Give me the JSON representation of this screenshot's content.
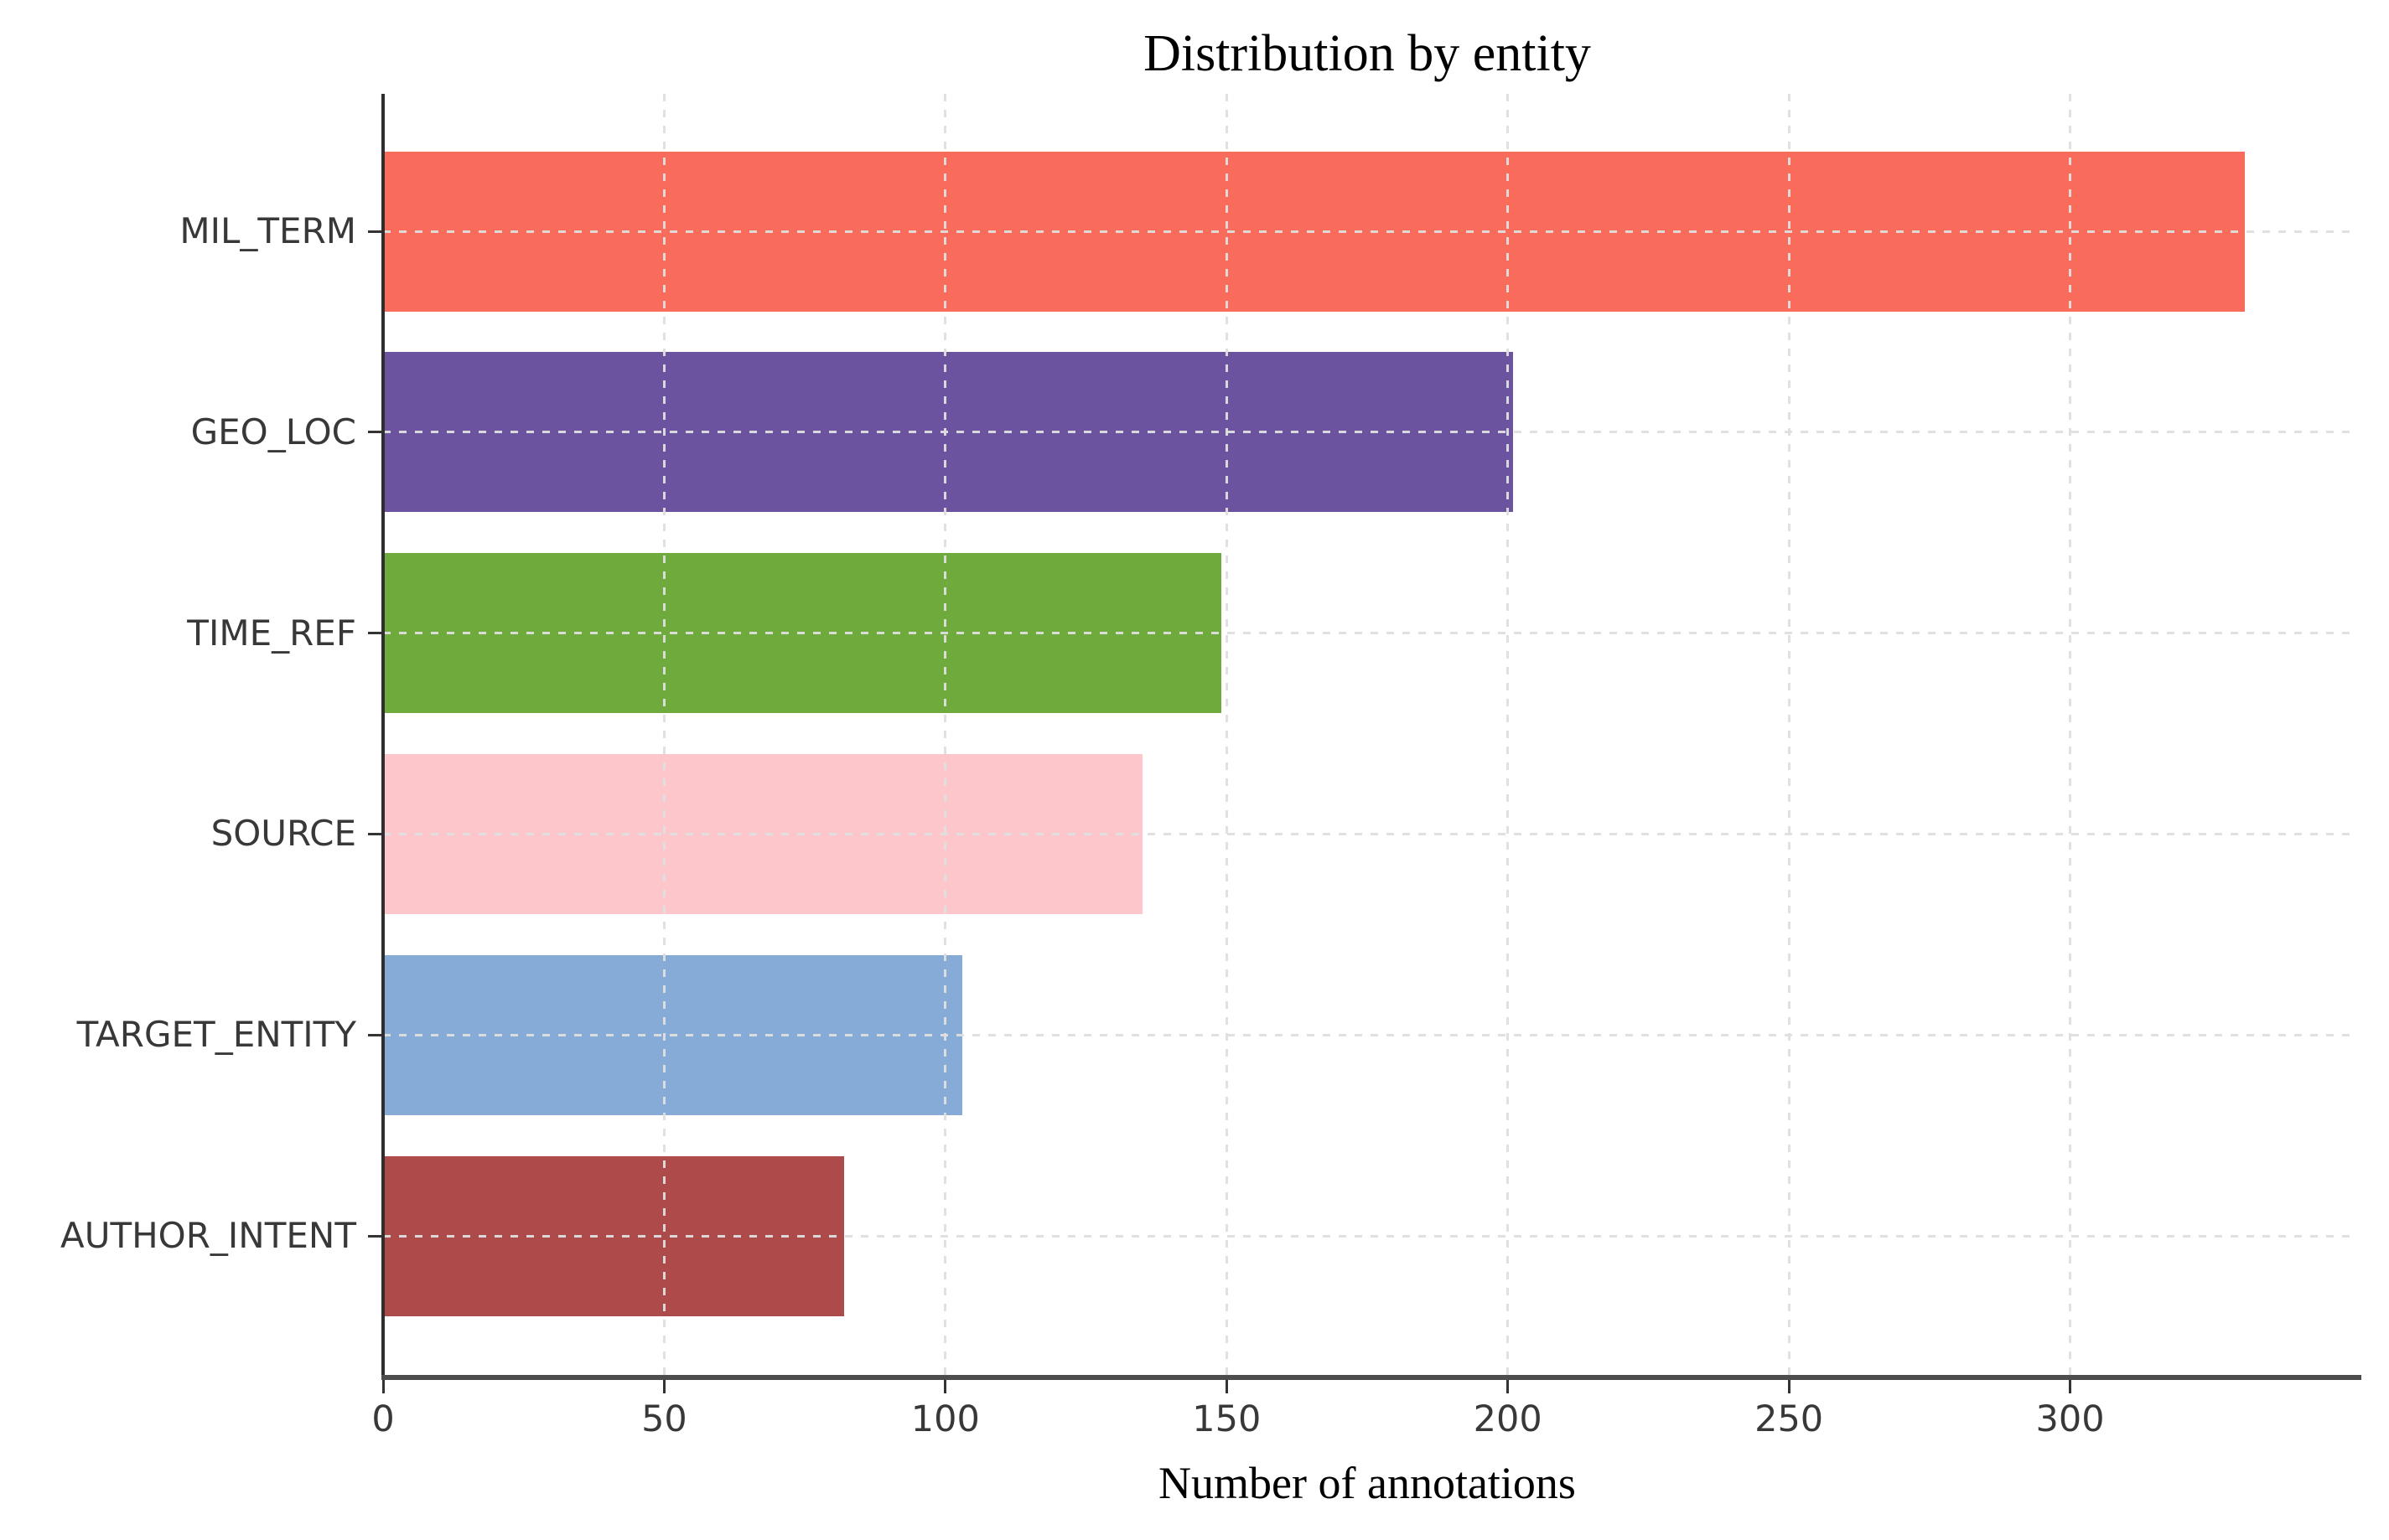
{
  "chart_data": {
    "type": "bar",
    "orientation": "horizontal",
    "title": "Distribution by entity",
    "xlabel": "Number of annotations",
    "ylabel": "",
    "categories": [
      "MIL_TERM",
      "GEO_LOC",
      "TIME_REF",
      "SOURCE",
      "TARGET_ENTITY",
      "AUTHOR_INTENT"
    ],
    "values": [
      331,
      201,
      149,
      135,
      103,
      82
    ],
    "bar_colors": [
      "#f96c5c",
      "#6b539f",
      "#6fab3c",
      "#fcc6cb",
      "#86abd7",
      "#ad4a4a"
    ],
    "x_ticks": [
      0,
      50,
      100,
      150,
      200,
      250,
      300
    ],
    "xlim": [
      0,
      350
    ],
    "grid": true,
    "grid_style": "dashed",
    "legend": "none",
    "background_color": "#ffffff",
    "grid_color": "#dfdfdf",
    "spine_color": "#2e2e2e",
    "tick_label_color": "#383838",
    "title_color": "#000000"
  }
}
